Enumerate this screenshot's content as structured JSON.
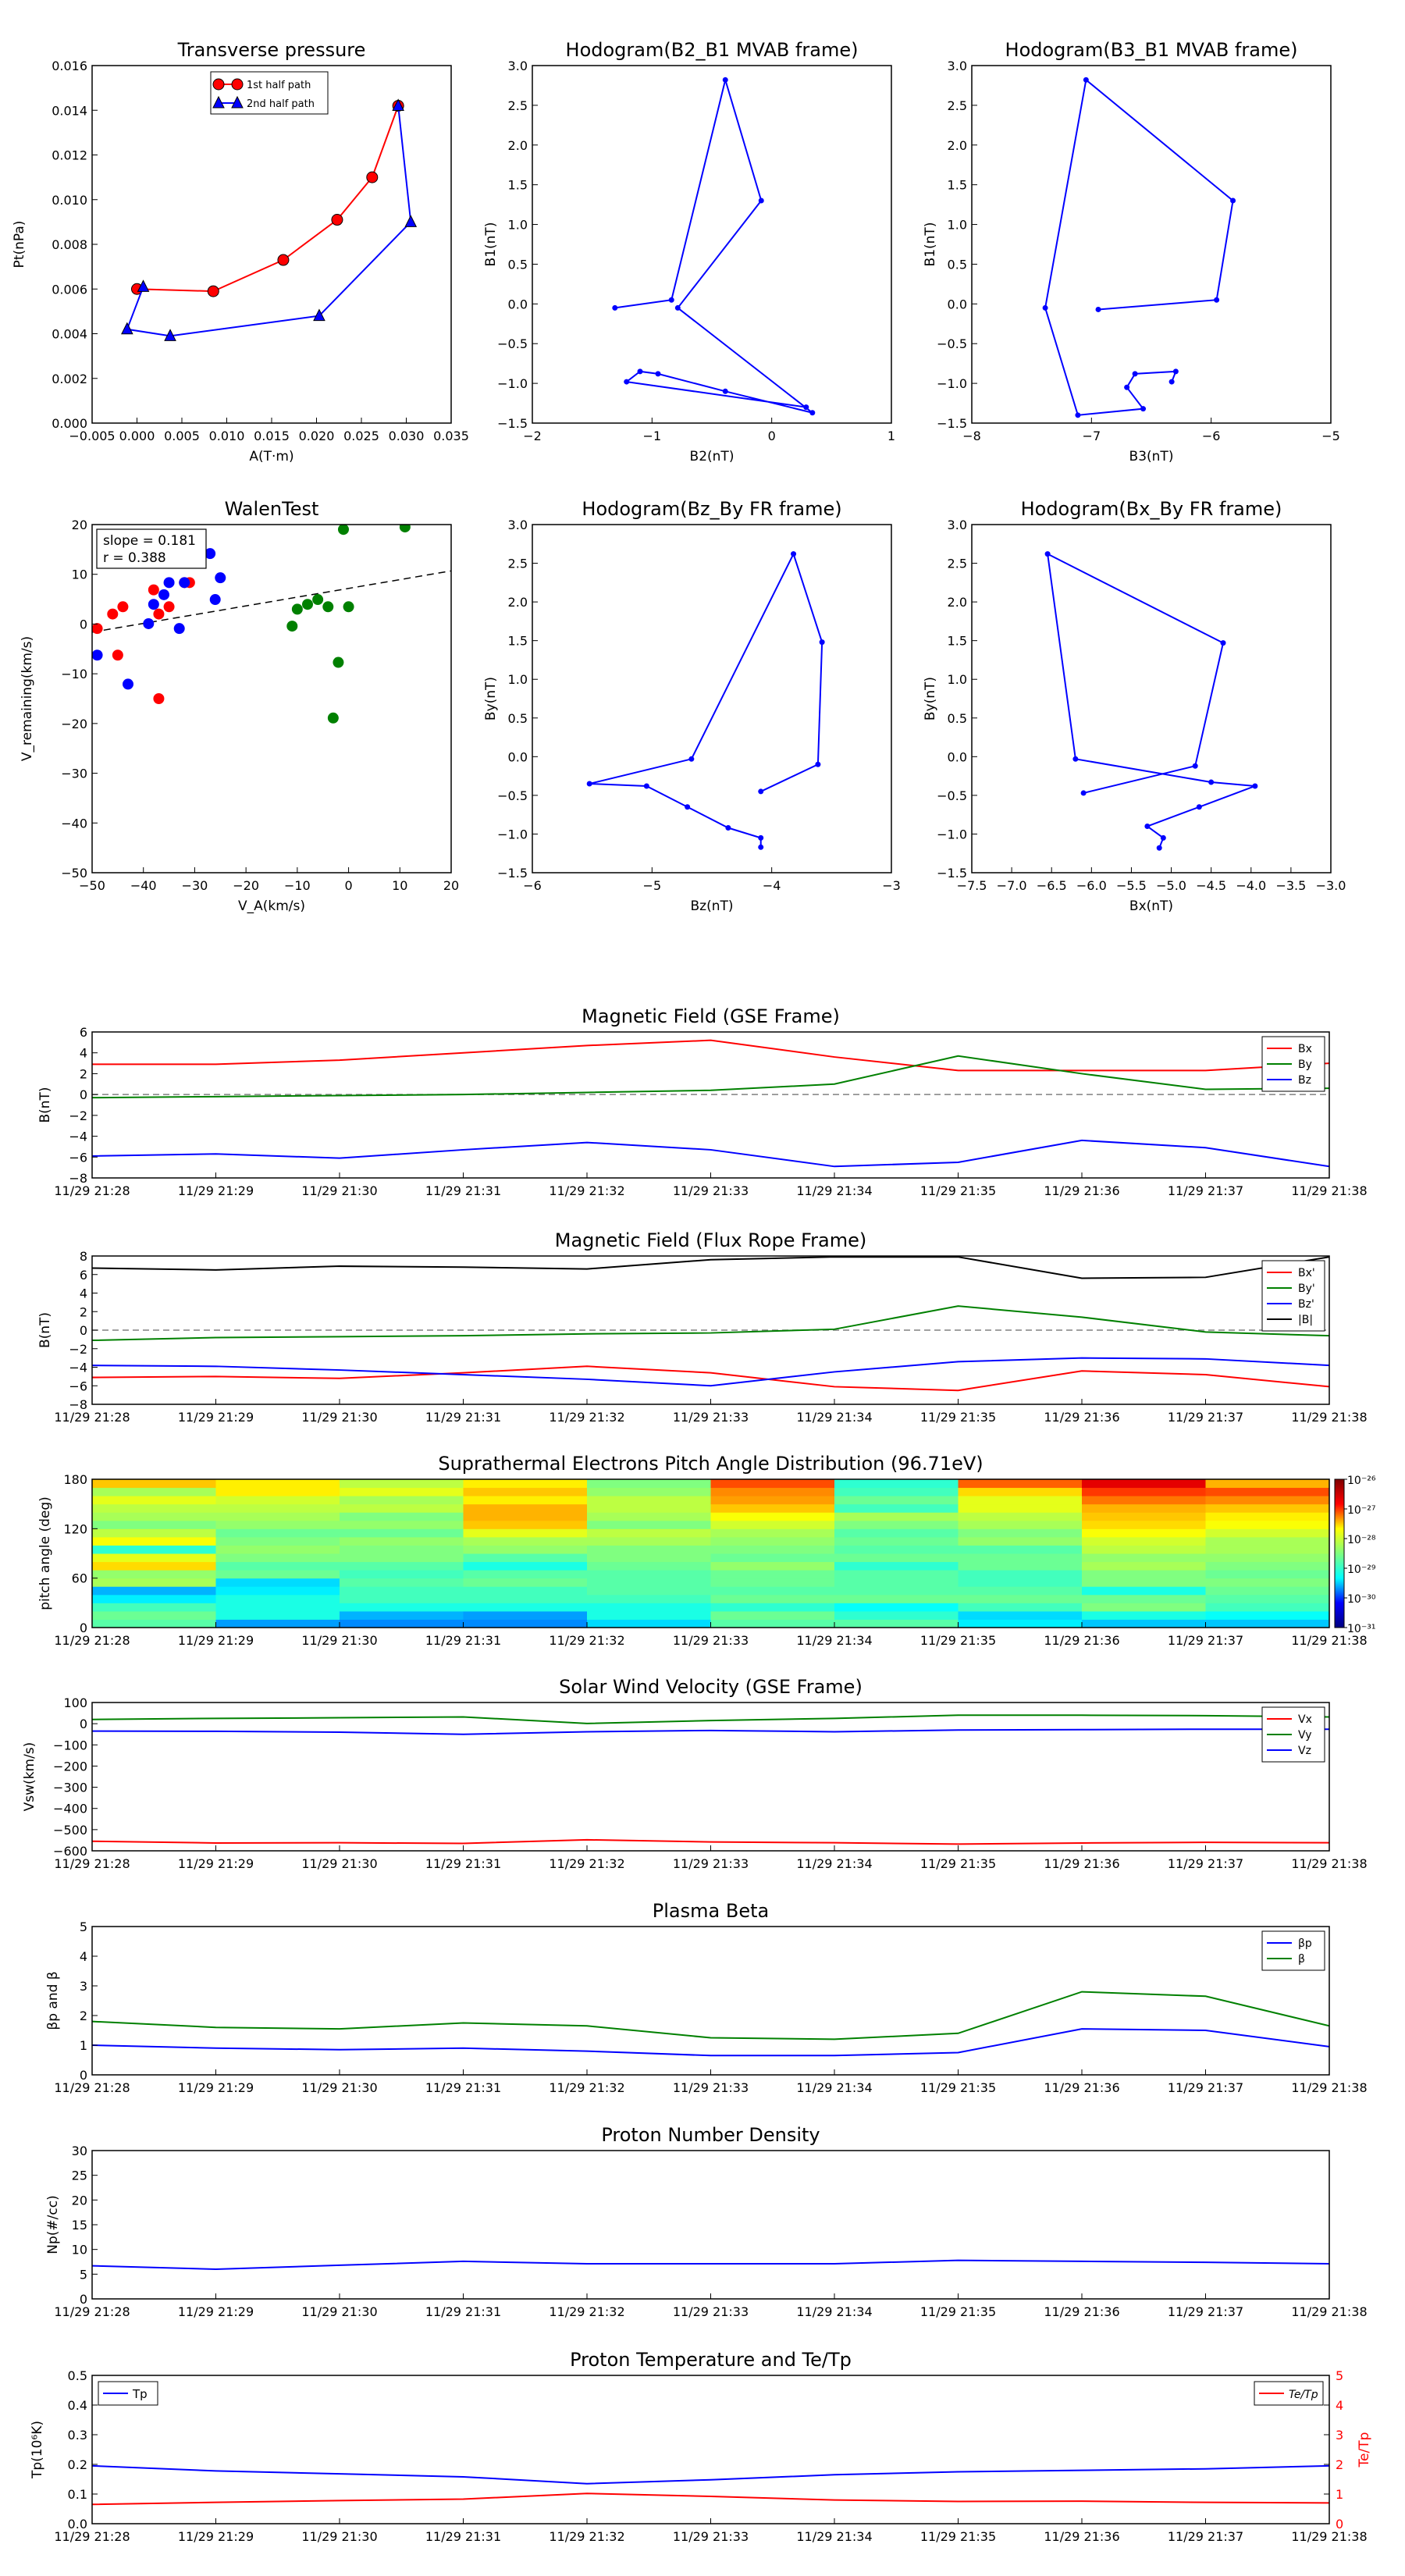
{
  "time_ticks": [
    "11/29 21:28",
    "11/29 21:29",
    "11/29 21:30",
    "11/29 21:31",
    "11/29 21:32",
    "11/29 21:33",
    "11/29 21:34",
    "11/29 21:35",
    "11/29 21:36",
    "11/29 21:37",
    "11/29 21:38"
  ],
  "colors": {
    "red": "#ff0000",
    "green": "#008000",
    "blue": "#0000ff",
    "black": "#000000",
    "gray": "#808080"
  },
  "chart_data": [
    {
      "id": "transverse",
      "type": "line",
      "title": "Transverse pressure",
      "xlabel": "A(T·m)",
      "ylabel": "Pt(nPa)",
      "xlim": [
        -0.005,
        0.035
      ],
      "ylim": [
        0,
        0.016
      ],
      "xticks": [
        "−0.005",
        "0.000",
        "0.005",
        "0.010",
        "0.015",
        "0.020",
        "0.025",
        "0.030",
        "0.035"
      ],
      "yticks": [
        "0.000",
        "0.002",
        "0.004",
        "0.006",
        "0.008",
        "0.010",
        "0.012",
        "0.014",
        "0.016"
      ],
      "legend": "top-center",
      "series": [
        {
          "name": "1st half path",
          "color": "red",
          "marker": "circle",
          "x": [
            0.0,
            0.0085,
            0.0163,
            0.0223,
            0.0262,
            0.0291
          ],
          "y": [
            0.006,
            0.0059,
            0.0073,
            0.0091,
            0.011,
            0.0142
          ]
        },
        {
          "name": "2nd half path",
          "color": "blue",
          "marker": "triangle",
          "x": [
            0.0291,
            0.0305,
            0.0203,
            0.0037,
            -0.0011,
            0.0007
          ],
          "y": [
            0.0142,
            0.009,
            0.0048,
            0.0039,
            0.0042,
            0.0061
          ]
        }
      ]
    },
    {
      "id": "hodo1",
      "type": "line",
      "title": "Hodogram(B2_B1 MVAB frame)",
      "xlabel": "B2(nT)",
      "ylabel": "B1(nT)",
      "xlim": [
        -2.5,
        1.5
      ],
      "ylim": [
        -1.5,
        3.0
      ],
      "xticks": [
        "−2",
        "−1",
        "0",
        "1"
      ],
      "yticks": [
        "−1.5",
        "−1.0",
        "−0.5",
        "0.0",
        "0.5",
        "1.0",
        "1.5",
        "2.0",
        "2.5",
        "3.0"
      ],
      "series": [
        {
          "color": "blue",
          "marker": "dot",
          "x": [
            -1.58,
            -0.95,
            -0.35,
            0.05,
            -0.88,
            0.62,
            -0.35,
            -1.1,
            -1.3,
            -1.45,
            0.55
          ],
          "y": [
            -0.05,
            0.05,
            2.82,
            1.3,
            -0.05,
            -1.37,
            -1.1,
            -0.88,
            -0.85,
            -0.98,
            -1.3
          ]
        }
      ]
    },
    {
      "id": "hodo2",
      "type": "line",
      "title": "Hodogram(B3_B1 MVAB frame)",
      "xlabel": "B3(nT)",
      "ylabel": "B1(nT)",
      "xlim": [
        -8.7,
        -4.3
      ],
      "ylim": [
        -1.5,
        3.0
      ],
      "xticks": [
        "−8",
        "−7",
        "−6",
        "−5"
      ],
      "yticks": [
        "−1.5",
        "−1.0",
        "−0.5",
        "0.0",
        "0.5",
        "1.0",
        "1.5",
        "2.0",
        "2.5",
        "3.0"
      ],
      "series": [
        {
          "color": "blue",
          "marker": "dot",
          "x": [
            -7.15,
            -5.7,
            -5.5,
            -7.3,
            -7.8,
            -7.4,
            -6.6,
            -6.8,
            -6.7,
            -6.2,
            -6.25
          ],
          "y": [
            -0.07,
            0.05,
            1.3,
            2.82,
            -0.05,
            -1.4,
            -1.32,
            -1.05,
            -0.88,
            -0.85,
            -0.98
          ]
        }
      ]
    },
    {
      "id": "walen",
      "type": "scatter",
      "title": "WalenTest",
      "xlabel": "V_A(km/s)",
      "ylabel": "V_remaining(km/s)",
      "xlim": [
        -50,
        20
      ],
      "ylim": [
        -52,
        20
      ],
      "xticks": [
        "−50",
        "−40",
        "−30",
        "−20",
        "−10",
        "0",
        "10",
        "20"
      ],
      "yticks": [
        "−50",
        "−40",
        "−30",
        "−20",
        "−10",
        "0",
        "10",
        "20"
      ],
      "annotation": [
        "slope = 0.181",
        "r = 0.388"
      ],
      "fit": {
        "slope": 0.181,
        "intercept": 6.8
      },
      "series": [
        {
          "color": "red",
          "x": [
            -52,
            -51,
            -49,
            -46,
            -45,
            -44,
            -38,
            -37,
            -37,
            -35,
            -32,
            -31
          ],
          "y": [
            -0.5,
            -4,
            -1.5,
            1.5,
            -7,
            3,
            6.5,
            1.5,
            -16,
            3,
            8,
            8
          ]
        },
        {
          "color": "blue",
          "x": [
            -49,
            -43,
            -39,
            -38,
            -36,
            -35,
            -33,
            -32,
            -27,
            -26,
            -25
          ],
          "y": [
            -7,
            -13,
            -0.5,
            3.5,
            5.5,
            8,
            -1.5,
            8,
            14,
            4.5,
            9
          ]
        },
        {
          "color": "green",
          "x": [
            -11,
            -10,
            -8,
            -6,
            -4,
            -3,
            -2,
            -1,
            0,
            11
          ],
          "y": [
            -1,
            2.5,
            3.5,
            4.5,
            3,
            -20,
            -8.5,
            19,
            3,
            19.5
          ]
        }
      ]
    },
    {
      "id": "hodo3",
      "type": "line",
      "title": "Hodogram(Bz_By FR frame)",
      "xlabel": "Bz(nT)",
      "ylabel": "By(nT)",
      "xlim": [
        -6.7,
        -2.3
      ],
      "ylim": [
        -1.5,
        3.0
      ],
      "xticks": [
        "−6",
        "−5",
        "−4",
        "−3"
      ],
      "yticks": [
        "−1.5",
        "−1.0",
        "−0.5",
        "0.0",
        "0.5",
        "1.0",
        "1.5",
        "2.0",
        "2.5",
        "3.0"
      ],
      "series": [
        {
          "color": "blue",
          "marker": "dot",
          "x": [
            -3.9,
            -3.2,
            -3.15,
            -3.5,
            -4.75,
            -6.0,
            -5.3,
            -4.8,
            -4.3,
            -3.9,
            -3.9
          ],
          "y": [
            -0.45,
            -0.1,
            1.48,
            2.62,
            -0.03,
            -0.35,
            -0.38,
            -0.65,
            -0.92,
            -1.05,
            -1.17
          ]
        }
      ]
    },
    {
      "id": "hodo4",
      "type": "line",
      "title": "Hodogram(Bx_By FR frame)",
      "xlabel": "Bx(nT)",
      "ylabel": "By(nT)",
      "xlim": [
        -7.5,
        -3.0
      ],
      "ylim": [
        -1.5,
        3.0
      ],
      "xticks": [
        "−7.5",
        "−7.0",
        "−6.5",
        "−6.0",
        "−5.5",
        "−5.0",
        "−4.5",
        "−4.0",
        "−3.5",
        "−3.0"
      ],
      "yticks": [
        "−1.5",
        "−1.0",
        "−0.5",
        "0.0",
        "0.5",
        "1.0",
        "1.5",
        "2.0",
        "2.5",
        "3.0"
      ],
      "series": [
        {
          "color": "blue",
          "marker": "dot",
          "x": [
            -6.1,
            -4.7,
            -4.35,
            -6.55,
            -6.2,
            -4.5,
            -3.95,
            -4.65,
            -5.3,
            -5.1,
            -5.15
          ],
          "y": [
            -0.47,
            -0.12,
            1.47,
            2.62,
            -0.03,
            -0.33,
            -0.38,
            -0.65,
            -0.9,
            -1.05,
            -1.18
          ]
        }
      ]
    },
    {
      "id": "bgse",
      "type": "line",
      "title": "Magnetic Field (GSE Frame)",
      "ylabel": "B(nT)",
      "ylim": [
        -8,
        6
      ],
      "yticks": [
        "−8",
        "−6",
        "−4",
        "−2",
        "0",
        "2",
        "4",
        "6"
      ],
      "zero_line": true,
      "legend": "top-right",
      "x": [
        0,
        1,
        2,
        3,
        4,
        5,
        6,
        7,
        8,
        9,
        10
      ],
      "series": [
        {
          "name": "Bx",
          "color": "red",
          "values": [
            2.9,
            2.9,
            3.3,
            4.0,
            4.7,
            5.2,
            3.6,
            2.3,
            2.3,
            2.3,
            3.0
          ]
        },
        {
          "name": "By",
          "color": "green",
          "values": [
            -0.3,
            -0.2,
            -0.1,
            0.0,
            0.2,
            0.4,
            1.0,
            3.7,
            2.0,
            0.5,
            0.6
          ]
        },
        {
          "name": "Bz",
          "color": "blue",
          "values": [
            -5.9,
            -5.7,
            -6.1,
            -5.3,
            -4.6,
            -5.3,
            -6.9,
            -6.5,
            -4.4,
            -5.1,
            -6.9
          ]
        }
      ]
    },
    {
      "id": "bfr",
      "type": "line",
      "title": "Magnetic Field (Flux Rope Frame)",
      "ylabel": "B(nT)",
      "ylim": [
        -8,
        8
      ],
      "yticks": [
        "−8",
        "−6",
        "−4",
        "−2",
        "0",
        "2",
        "4",
        "6",
        "8"
      ],
      "zero_line": true,
      "legend": "top-right",
      "x": [
        0,
        1,
        2,
        3,
        4,
        5,
        6,
        7,
        8,
        9,
        10
      ],
      "series": [
        {
          "name": "Bx'",
          "color": "red",
          "values": [
            -5.1,
            -5.0,
            -5.2,
            -4.6,
            -3.9,
            -4.6,
            -6.1,
            -6.5,
            -4.4,
            -4.8,
            -6.1
          ]
        },
        {
          "name": "By'",
          "color": "green",
          "values": [
            -1.1,
            -0.8,
            -0.7,
            -0.6,
            -0.4,
            -0.3,
            0.1,
            2.6,
            1.4,
            -0.2,
            -0.6
          ]
        },
        {
          "name": "Bz'",
          "color": "blue",
          "values": [
            -3.8,
            -3.9,
            -4.3,
            -4.8,
            -5.3,
            -6.0,
            -4.5,
            -3.4,
            -3.0,
            -3.1,
            -3.8
          ]
        },
        {
          "name": "|B|",
          "color": "black",
          "values": [
            6.7,
            6.5,
            6.9,
            6.8,
            6.6,
            7.6,
            7.9,
            7.9,
            5.6,
            5.7,
            7.9
          ]
        }
      ]
    },
    {
      "id": "pad",
      "type": "heatmap",
      "title": "Suprathermal Electrons Pitch Angle Distribution (96.71eV)",
      "ylabel": "pitch angle (deg)",
      "ylim": [
        0,
        180
      ],
      "yticks": [
        "0",
        "60",
        "120",
        "180"
      ],
      "colorbar": {
        "ticks": [
          "10⁻²⁶",
          "10⁻²⁷",
          "10⁻²⁸",
          "10⁻²⁹",
          "10⁻³⁰",
          "10⁻³¹"
        ],
        "log_range": [
          -31,
          -26
        ]
      },
      "columns": [
        [
          -28.7,
          -28.6,
          -28.8,
          -29.2,
          -29.5,
          -28.3,
          -28.4,
          -27.7,
          -28.0,
          -28.9,
          -27.9,
          -28.2,
          -28.5,
          -28.3,
          -28.2,
          -28.0,
          -28.3,
          -27.6
        ],
        [
          -29.6,
          -29.0,
          -29.0,
          -29.0,
          -29.2,
          -29.3,
          -28.6,
          -28.7,
          -28.5,
          -28.4,
          -28.5,
          -28.6,
          -28.4,
          -28.3,
          -28.2,
          -28.1,
          -27.8,
          -27.8
        ],
        [
          -29.7,
          -29.5,
          -29.0,
          -28.8,
          -28.8,
          -28.7,
          -28.8,
          -28.7,
          -28.5,
          -28.5,
          -28.4,
          -28.6,
          -28.4,
          -28.5,
          -28.2,
          -28.3,
          -28.0,
          -28.2
        ],
        [
          -29.7,
          -29.6,
          -29.0,
          -28.8,
          -28.8,
          -28.6,
          -28.7,
          -29.0,
          -28.7,
          -28.4,
          -28.3,
          -28.0,
          -27.6,
          -27.5,
          -27.5,
          -27.8,
          -27.6,
          -27.8
        ],
        [
          -29.3,
          -29.0,
          -29.0,
          -28.8,
          -28.7,
          -28.7,
          -28.7,
          -28.6,
          -28.5,
          -28.5,
          -28.3,
          -28.2,
          -28.5,
          -28.3,
          -28.2,
          -28.2,
          -28.4,
          -28.5
        ],
        [
          -28.7,
          -28.6,
          -28.9,
          -28.6,
          -28.7,
          -28.6,
          -28.6,
          -28.4,
          -28.6,
          -28.5,
          -28.4,
          -28.3,
          -28.1,
          -27.9,
          -27.6,
          -27.4,
          -27.3,
          -27.0
        ],
        [
          -28.7,
          -28.9,
          -29.1,
          -28.6,
          -28.7,
          -28.7,
          -28.7,
          -28.9,
          -28.6,
          -28.7,
          -28.6,
          -28.7,
          -28.5,
          -28.3,
          -28.8,
          -28.6,
          -28.8,
          -28.9
        ],
        [
          -29.2,
          -29.3,
          -28.8,
          -28.6,
          -28.7,
          -28.8,
          -28.8,
          -28.6,
          -28.6,
          -28.7,
          -28.4,
          -28.5,
          -28.3,
          -28.2,
          -28.0,
          -28.0,
          -27.7,
          -27.1
        ],
        [
          -29.4,
          -29.0,
          -28.5,
          -28.6,
          -29.0,
          -28.5,
          -28.5,
          -28.3,
          -28.4,
          -28.2,
          -28.1,
          -27.9,
          -27.7,
          -27.6,
          -27.5,
          -27.2,
          -26.9,
          -26.5
        ],
        [
          -29.4,
          -29.1,
          -28.8,
          -28.7,
          -28.6,
          -28.5,
          -28.6,
          -28.5,
          -28.4,
          -28.3,
          -28.3,
          -28.1,
          -27.9,
          -27.8,
          -27.6,
          -27.3,
          -27.0,
          -27.5
        ]
      ]
    },
    {
      "id": "vsw",
      "type": "line",
      "title": "Solar Wind Velocity (GSE Frame)",
      "ylabel": "Vsw(km/s)",
      "ylim": [
        -600,
        100
      ],
      "yticks": [
        "−600",
        "−500",
        "−400",
        "−300",
        "−200",
        "−100",
        "0",
        "100"
      ],
      "legend": "top-right",
      "x": [
        0,
        1,
        2,
        3,
        4,
        5,
        6,
        7,
        8,
        9,
        10
      ],
      "series": [
        {
          "name": "Vx",
          "color": "red",
          "values": [
            -555,
            -563,
            -562,
            -565,
            -548,
            -558,
            -562,
            -568,
            -563,
            -560,
            -562
          ]
        },
        {
          "name": "Vy",
          "color": "green",
          "values": [
            20,
            25,
            28,
            32,
            1,
            15,
            25,
            40,
            40,
            38,
            32
          ]
        },
        {
          "name": "Vz",
          "color": "blue",
          "values": [
            -35,
            -36,
            -40,
            -50,
            -38,
            -32,
            -38,
            -30,
            -28,
            -26,
            -26
          ]
        }
      ]
    },
    {
      "id": "beta",
      "type": "line",
      "title": "Plasma Beta",
      "ylabel": "βp and β",
      "ylim": [
        0,
        5
      ],
      "yticks": [
        "0",
        "1",
        "2",
        "3",
        "4",
        "5"
      ],
      "legend": "top-right",
      "x": [
        0,
        1,
        2,
        3,
        4,
        5,
        6,
        7,
        8,
        9,
        10
      ],
      "series": [
        {
          "name": "βp",
          "color": "blue",
          "values": [
            1.0,
            0.9,
            0.85,
            0.9,
            0.8,
            0.65,
            0.65,
            0.75,
            1.55,
            1.5,
            0.95
          ]
        },
        {
          "name": "β",
          "color": "green",
          "values": [
            1.8,
            1.6,
            1.55,
            1.75,
            1.65,
            1.25,
            1.2,
            1.4,
            2.8,
            2.65,
            1.65
          ]
        }
      ]
    },
    {
      "id": "np",
      "type": "line",
      "title": "Proton Number Density",
      "ylabel": "Np(#/cc)",
      "ylim": [
        0,
        30
      ],
      "yticks": [
        "0",
        "5",
        "10",
        "15",
        "20",
        "25",
        "30"
      ],
      "x": [
        0,
        1,
        2,
        3,
        4,
        5,
        6,
        7,
        8,
        9,
        10
      ],
      "series": [
        {
          "color": "blue",
          "values": [
            6.7,
            6.0,
            6.8,
            7.6,
            7.1,
            7.1,
            7.1,
            7.8,
            7.6,
            7.4,
            7.1
          ]
        }
      ]
    },
    {
      "id": "tp",
      "type": "line",
      "title": "Proton Temperature and Te/Tp",
      "ylabel": "Tp(10⁶K)",
      "ylabel_right": "Te/Tp",
      "ylim": [
        0,
        0.5
      ],
      "ylim_right": [
        0,
        5
      ],
      "yticks": [
        "0.0",
        "0.1",
        "0.2",
        "0.3",
        "0.4",
        "0.5"
      ],
      "yticks_right": [
        "0",
        "1",
        "2",
        "3",
        "4",
        "5"
      ],
      "x": [
        0,
        1,
        2,
        3,
        4,
        5,
        6,
        7,
        8,
        9,
        10
      ],
      "series": [
        {
          "name": "Tp",
          "color": "blue",
          "axis": "left",
          "values": [
            0.195,
            0.178,
            0.168,
            0.158,
            0.135,
            0.148,
            0.165,
            0.175,
            0.18,
            0.185,
            0.195
          ]
        },
        {
          "name": "Te/Tp",
          "color": "red",
          "axis": "right",
          "values": [
            0.65,
            0.72,
            0.78,
            0.83,
            1.02,
            0.92,
            0.8,
            0.75,
            0.76,
            0.72,
            0.7
          ]
        }
      ]
    }
  ]
}
